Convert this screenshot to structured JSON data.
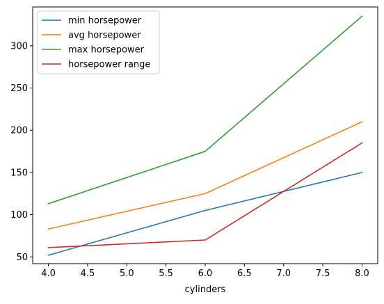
{
  "chart_data": {
    "type": "line",
    "title": "",
    "xlabel": "cylinders",
    "ylabel": "",
    "x": [
      4.0,
      6.0,
      8.0
    ],
    "xlim": [
      3.8,
      8.2
    ],
    "ylim": [
      42,
      346
    ],
    "xticks": [
      4.0,
      4.5,
      5.0,
      5.5,
      6.0,
      6.5,
      7.0,
      7.5,
      8.0
    ],
    "xtick_labels": [
      "4.0",
      "4.5",
      "5.0",
      "5.5",
      "6.0",
      "6.5",
      "7.0",
      "7.5",
      "8.0"
    ],
    "yticks": [
      50,
      100,
      150,
      200,
      250,
      300
    ],
    "ytick_labels": [
      "50",
      "100",
      "150",
      "200",
      "250",
      "300"
    ],
    "grid": false,
    "legend_position": "top-left",
    "series": [
      {
        "name": "min horsepower",
        "color": "#1f77b4",
        "values": [
          52,
          105,
          150
        ]
      },
      {
        "name": "avg horsepower",
        "color": "#ff7f0e",
        "values": [
          83,
          125,
          210
        ]
      },
      {
        "name": "max horsepower",
        "color": "#2ca02c",
        "values": [
          113,
          175,
          335
        ]
      },
      {
        "name": "horsepower range",
        "color": "#d62728",
        "values": [
          61,
          70,
          185
        ]
      }
    ]
  }
}
